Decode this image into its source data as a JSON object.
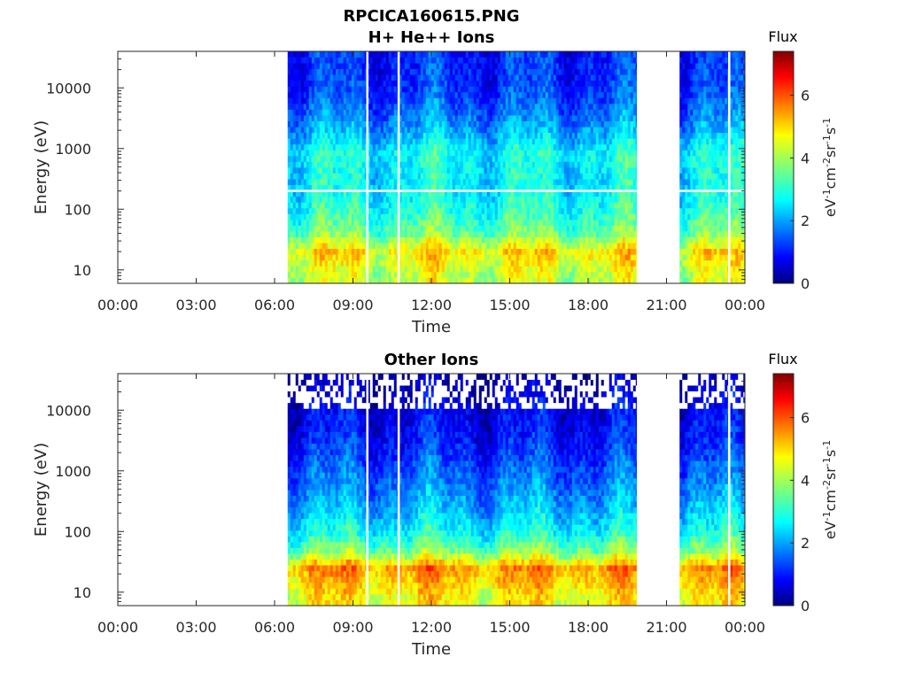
{
  "figure": {
    "title": "RPCICA160615.PNG"
  },
  "colorbar": {
    "label": "Flux",
    "unit_base": "eV",
    "unit_exp1": "-1",
    "unit_cm": "cm",
    "unit_exp2": "-2",
    "unit_sr": "sr",
    "unit_exp3": "-1",
    "unit_s": "s",
    "unit_exp4": "-1",
    "range": [
      0,
      7.4
    ],
    "ticks": [
      0,
      2,
      4,
      6
    ],
    "colormap": "jet"
  },
  "chart_data": [
    {
      "type": "heatmap",
      "title": "H+ He++ Ions",
      "xlabel": "Time",
      "ylabel": "Energy (eV)",
      "x_tick_labels": [
        "00:00",
        "03:00",
        "06:00",
        "09:00",
        "12:00",
        "15:00",
        "18:00",
        "21:00",
        "00:00"
      ],
      "x_ticks_hours": [
        0,
        3,
        6,
        9,
        12,
        15,
        18,
        21,
        24
      ],
      "xlim_hours": [
        0,
        24
      ],
      "y_scale": "log",
      "y_tick_labels": [
        "10",
        "100",
        "1000",
        "10000"
      ],
      "y_ticks": [
        10,
        100,
        1000,
        10000
      ],
      "ylim": [
        6,
        40000
      ],
      "data_intervals_hours": [
        [
          6.5,
          19.85
        ],
        [
          21.5,
          24
        ]
      ],
      "gap_lines_hours": [
        9.55,
        10.75,
        23.4
      ],
      "gap_line_energy": 200,
      "flux_profile": [
        {
          "energy": 8,
          "flux": 4.2
        },
        {
          "energy": 20,
          "flux": 4.8
        },
        {
          "energy": 40,
          "flux": 3.6
        },
        {
          "energy": 100,
          "flux": 3.0
        },
        {
          "energy": 300,
          "flux": 2.7
        },
        {
          "energy": 800,
          "flux": 2.9
        },
        {
          "energy": 2500,
          "flux": 2.0
        },
        {
          "energy": 10000,
          "flux": 1.3
        },
        {
          "energy": 40000,
          "flux": 1.2
        }
      ]
    },
    {
      "type": "heatmap",
      "title": "Other Ions",
      "xlabel": "Time",
      "ylabel": "Energy (eV)",
      "x_tick_labels": [
        "00:00",
        "03:00",
        "06:00",
        "09:00",
        "12:00",
        "15:00",
        "18:00",
        "21:00",
        "00:00"
      ],
      "x_ticks_hours": [
        0,
        3,
        6,
        9,
        12,
        15,
        18,
        21,
        24
      ],
      "xlim_hours": [
        0,
        24
      ],
      "y_scale": "log",
      "y_tick_labels": [
        "10",
        "100",
        "1000",
        "10000"
      ],
      "y_ticks": [
        10,
        100,
        1000,
        10000
      ],
      "ylim": [
        6,
        40000
      ],
      "data_intervals_hours": [
        [
          6.5,
          19.85
        ],
        [
          21.5,
          24
        ]
      ],
      "gap_lines_hours": [
        9.55,
        10.75,
        23.4
      ],
      "flux_profile": [
        {
          "energy": 8,
          "flux": 4.6
        },
        {
          "energy": 25,
          "flux": 5.4
        },
        {
          "energy": 45,
          "flux": 3.8
        },
        {
          "energy": 100,
          "flux": 2.8
        },
        {
          "energy": 400,
          "flux": 2.0
        },
        {
          "energy": 1000,
          "flux": 1.6
        },
        {
          "energy": 3000,
          "flux": 1.1
        },
        {
          "energy": 10000,
          "flux": 0.8
        },
        {
          "energy": 40000,
          "flux": 0.3
        }
      ]
    }
  ]
}
